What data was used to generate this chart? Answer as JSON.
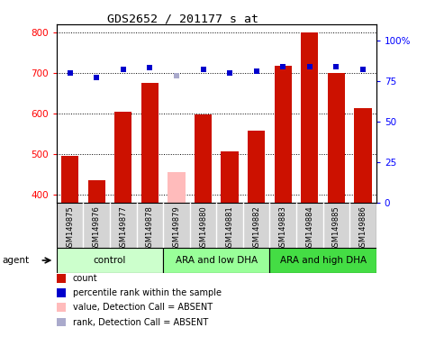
{
  "title": "GDS2652 / 201177_s_at",
  "samples": [
    "GSM149875",
    "GSM149876",
    "GSM149877",
    "GSM149878",
    "GSM149879",
    "GSM149880",
    "GSM149881",
    "GSM149882",
    "GSM149883",
    "GSM149884",
    "GSM149885",
    "GSM149886"
  ],
  "counts": [
    495,
    435,
    605,
    675,
    455,
    597,
    505,
    558,
    718,
    800,
    700,
    612
  ],
  "absent_bar": [
    false,
    false,
    false,
    false,
    true,
    false,
    false,
    false,
    false,
    false,
    false,
    false
  ],
  "percentile_ranks": [
    80,
    77,
    82,
    83,
    78,
    82,
    80,
    81,
    84,
    84,
    84,
    82
  ],
  "absent_rank": [
    false,
    false,
    false,
    false,
    true,
    false,
    false,
    false,
    false,
    false,
    false,
    false
  ],
  "ylim_left": [
    380,
    820
  ],
  "ylim_right": [
    0,
    110
  ],
  "yticks_left": [
    400,
    500,
    600,
    700,
    800
  ],
  "yticks_right": [
    0,
    25,
    50,
    75,
    100
  ],
  "groups": [
    {
      "label": "control",
      "start": 0,
      "end": 4,
      "color": "#ccffcc"
    },
    {
      "label": "ARA and low DHA",
      "start": 4,
      "end": 8,
      "color": "#99ff99"
    },
    {
      "label": "ARA and high DHA",
      "start": 8,
      "end": 12,
      "color": "#44dd44"
    }
  ],
  "bar_color": "#cc1100",
  "absent_bar_color": "#ffbbbb",
  "rank_color": "#0000cc",
  "absent_rank_color": "#aaaacc",
  "sample_box_color": "#d4d4d4",
  "legend_items": [
    {
      "color": "#cc1100",
      "label": "count"
    },
    {
      "color": "#0000cc",
      "label": "percentile rank within the sample"
    },
    {
      "color": "#ffbbbb",
      "label": "value, Detection Call = ABSENT"
    },
    {
      "color": "#aaaacc",
      "label": "rank, Detection Call = ABSENT"
    }
  ]
}
